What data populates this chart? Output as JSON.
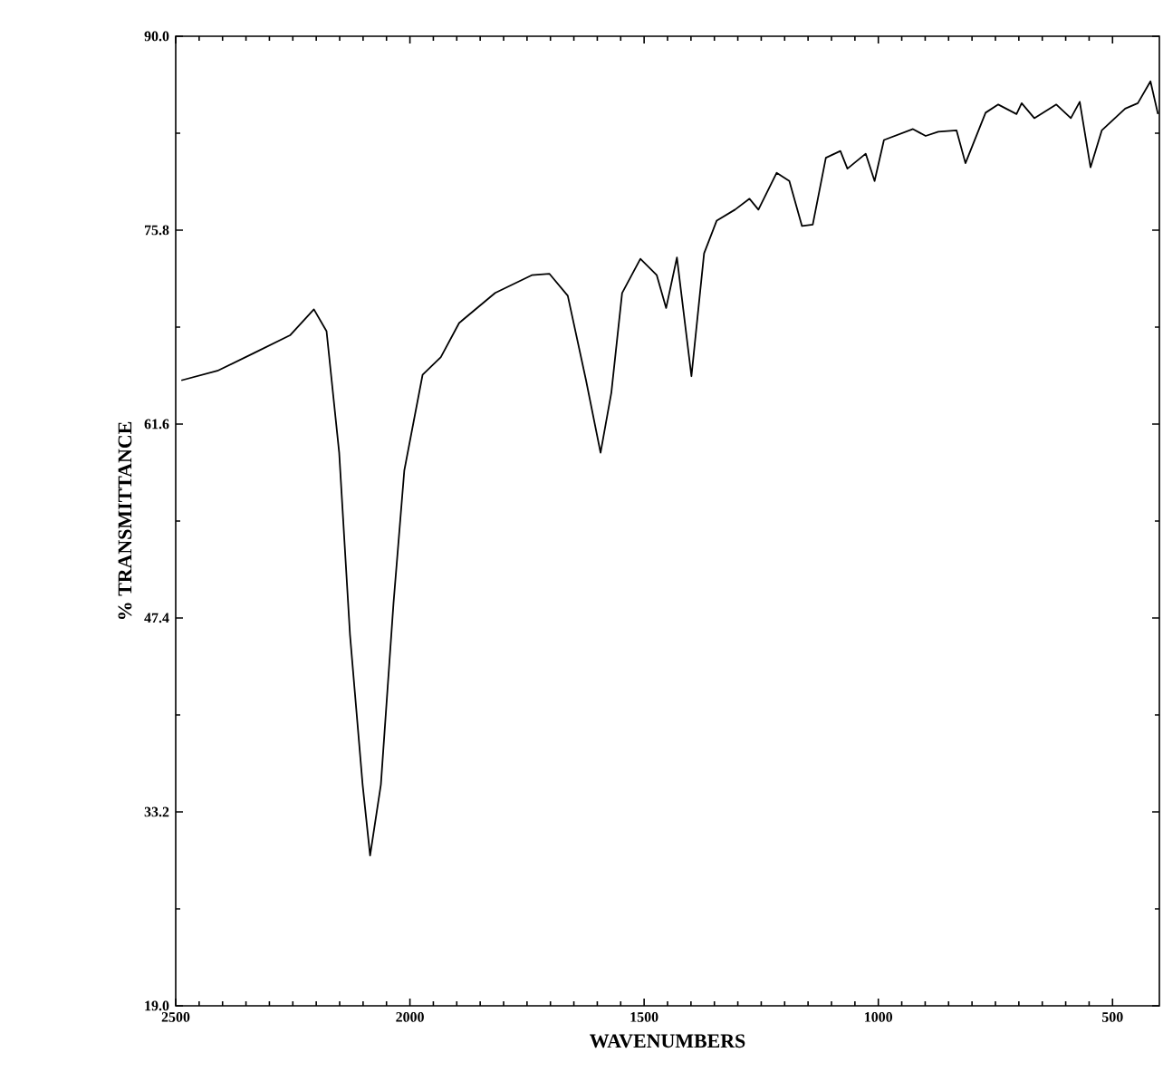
{
  "chart_data": {
    "type": "line",
    "xlabel": "WAVENUMBERS",
    "ylabel": "% TRANSMITTANCE",
    "color": "#000000",
    "marker": "none",
    "line_style": "solid",
    "xlim": [
      2500,
      400
    ],
    "ylim": [
      19.0,
      90.0
    ],
    "xticks": [
      2500,
      2000,
      1500,
      1000,
      500
    ],
    "yticks": [
      {
        "value": 19.0,
        "label": "19.0"
      },
      {
        "value": 33.2,
        "label": "33.2"
      },
      {
        "value": 47.4,
        "label": "47.4"
      },
      {
        "value": 61.6,
        "label": "61.6"
      },
      {
        "value": 75.8,
        "label": "75.8"
      },
      {
        "value": 90.0,
        "label": "90.0"
      }
    ],
    "x": [
      2488,
      2411,
      2333,
      2256,
      2205,
      2178,
      2151,
      2128,
      2101,
      2085,
      2062,
      2035,
      2012,
      1973,
      1934,
      1895,
      1818,
      1740,
      1702,
      1663,
      1624,
      1593,
      1570,
      1547,
      1508,
      1473,
      1453,
      1430,
      1399,
      1372,
      1345,
      1306,
      1275,
      1256,
      1217,
      1190,
      1163,
      1140,
      1112,
      1081,
      1066,
      1027,
      1008,
      988,
      926,
      899,
      872,
      833,
      814,
      771,
      744,
      705,
      694,
      667,
      620,
      589,
      570,
      547,
      523,
      473,
      446,
      419,
      403
    ],
    "values": [
      64.8,
      65.5,
      66.8,
      68.1,
      70.0,
      68.4,
      59.5,
      46.2,
      35.2,
      30.0,
      35.2,
      48.5,
      58.2,
      65.2,
      66.5,
      69.0,
      71.2,
      72.5,
      72.6,
      71.0,
      64.8,
      59.5,
      63.9,
      71.2,
      73.7,
      72.5,
      70.1,
      73.8,
      65.1,
      74.1,
      76.5,
      77.3,
      78.1,
      77.3,
      80.0,
      79.4,
      76.1,
      76.2,
      81.1,
      81.6,
      80.3,
      81.4,
      79.4,
      82.4,
      83.2,
      82.7,
      83.0,
      83.1,
      80.7,
      84.4,
      85.0,
      84.3,
      85.1,
      84.0,
      85.0,
      84.0,
      85.2,
      80.4,
      83.1,
      84.7,
      85.1,
      86.7,
      84.3
    ]
  }
}
